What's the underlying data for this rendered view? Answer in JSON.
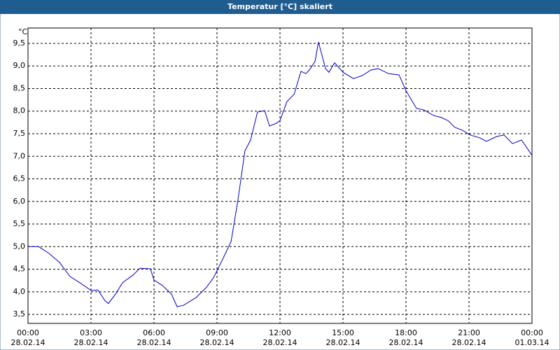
{
  "chart_data": {
    "type": "line",
    "title": "Temperatur [°C] skaliert",
    "y_unit": "°C",
    "x": [
      0,
      0.5,
      1,
      1.5,
      2,
      2.5,
      3,
      3.33,
      3.67,
      3.83,
      4.17,
      4.5,
      5,
      5.33,
      5.83,
      6,
      6.4,
      6.83,
      7.1,
      7.4,
      8,
      8.5,
      8.83,
      9.27,
      9.67,
      10,
      10.33,
      10.6,
      10.93,
      11.27,
      11.5,
      11.83,
      12,
      12.33,
      12.67,
      13,
      13.23,
      13.4,
      13.67,
      13.83,
      14.17,
      14.33,
      14.6,
      15,
      15.5,
      15.93,
      16.33,
      16.67,
      17.17,
      17.67,
      18,
      18.5,
      18.83,
      19.33,
      19.67,
      20,
      20.33,
      20.67,
      21.07,
      21.5,
      21.83,
      22.33,
      22.67,
      23.07,
      23.5,
      24
    ],
    "series": [
      {
        "color": "#0000cc",
        "values": [
          5.0,
          5.0,
          4.85,
          4.65,
          4.34,
          4.19,
          4.03,
          4.04,
          3.8,
          3.74,
          3.95,
          4.2,
          4.37,
          4.52,
          4.51,
          4.26,
          4.14,
          3.95,
          3.67,
          3.7,
          3.87,
          4.1,
          4.31,
          4.72,
          5.11,
          6.04,
          7.12,
          7.36,
          7.98,
          8.01,
          7.67,
          7.73,
          7.79,
          8.21,
          8.37,
          8.88,
          8.83,
          8.91,
          9.1,
          9.53,
          8.94,
          8.86,
          9.07,
          8.86,
          8.72,
          8.79,
          8.91,
          8.94,
          8.83,
          8.8,
          8.45,
          8.06,
          8.03,
          7.9,
          7.86,
          7.79,
          7.64,
          7.58,
          7.47,
          7.41,
          7.33,
          7.44,
          7.47,
          7.28,
          7.36,
          7.02
        ]
      }
    ],
    "xlim": [
      0,
      24
    ],
    "xticks": [
      {
        "value": 0,
        "label": "00:00"
      },
      {
        "value": 3,
        "label": "03:00"
      },
      {
        "value": 6,
        "label": "06:00"
      },
      {
        "value": 9,
        "label": "09:00"
      },
      {
        "value": 12,
        "label": "12:00"
      },
      {
        "value": 15,
        "label": "15:00"
      },
      {
        "value": 18,
        "label": "18:00"
      },
      {
        "value": 21,
        "label": "21:00"
      },
      {
        "value": 24,
        "label": "00:00"
      }
    ],
    "xtick_dates": [
      "28.02.14",
      "28.02.14",
      "28.02.14",
      "28.02.14",
      "28.02.14",
      "28.02.14",
      "28.02.14",
      "28.02.14",
      "01.03.14"
    ],
    "ylim": [
      3.3,
      9.84
    ],
    "yticks": [
      {
        "value": 3.5,
        "label": "3,5"
      },
      {
        "value": 4,
        "label": "4,0"
      },
      {
        "value": 4.5,
        "label": "4,5"
      },
      {
        "value": 5,
        "label": "5,0"
      },
      {
        "value": 5.5,
        "label": "5,5"
      },
      {
        "value": 6,
        "label": "6,0"
      },
      {
        "value": 6.5,
        "label": "6,5"
      },
      {
        "value": 7,
        "label": "7,0"
      },
      {
        "value": 7.5,
        "label": "7,5"
      },
      {
        "value": 8,
        "label": "8,0"
      },
      {
        "value": 8.5,
        "label": "8,5"
      },
      {
        "value": 9,
        "label": "9,0"
      },
      {
        "value": 9.5,
        "label": "9,5"
      }
    ],
    "grid": true
  }
}
